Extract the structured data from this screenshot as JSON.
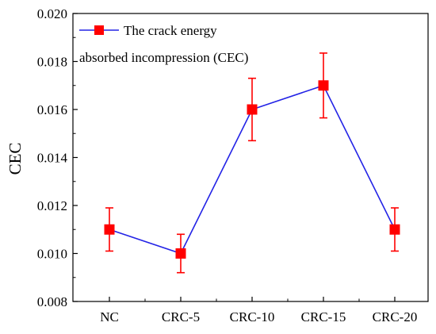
{
  "chart_data": {
    "type": "line",
    "ylabel": "CEC",
    "xlabel": "",
    "categories": [
      "NC",
      "CRC-5",
      "CRC-10",
      "CRC-15",
      "CRC-20"
    ],
    "ylim": [
      0.008,
      0.02
    ],
    "yticks": [
      "0.008",
      "0.010",
      "0.012",
      "0.014",
      "0.016",
      "0.018",
      "0.020"
    ],
    "grid": false,
    "legend_position": "top-left",
    "series": [
      {
        "name": "The crack energy absorbed incompression (CEC)",
        "legend_line1": "The crack energy",
        "legend_line2": "absorbed incompression (CEC)",
        "values": [
          0.011,
          0.01,
          0.016,
          0.017,
          0.011
        ],
        "err_low": [
          0.0101,
          0.0092,
          0.0147,
          0.01565,
          0.0101
        ],
        "err_high": [
          0.0119,
          0.0108,
          0.0173,
          0.01835,
          0.0119
        ],
        "line_color": "#2323e6",
        "marker_color": "#ff0000"
      }
    ]
  }
}
